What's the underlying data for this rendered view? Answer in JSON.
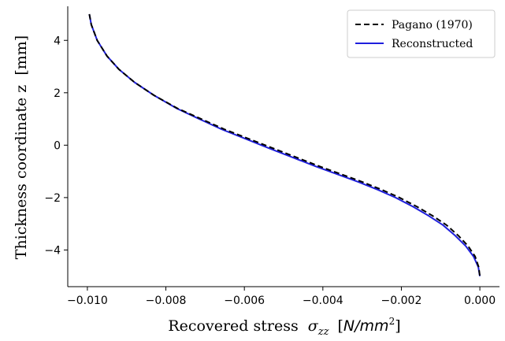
{
  "chart_data": {
    "type": "line",
    "title": "",
    "xlabel": "Recovered stress",
    "xlabel_symbol": "σ",
    "xlabel_subscript": "zz",
    "xlabel_unit_open": "[",
    "xlabel_unit": "N/mm",
    "xlabel_unit_sup": "2",
    "xlabel_unit_close": "]",
    "ylabel": "Thickness coordinate z",
    "ylabel_unit": "[mm]",
    "xlim": [
      -0.0105,
      0.0005
    ],
    "ylim": [
      -5.4,
      5.3
    ],
    "xticks": [
      -0.01,
      -0.008,
      -0.006,
      -0.004,
      -0.002,
      0.0
    ],
    "xtick_labels": [
      "−0.010",
      "−0.008",
      "−0.006",
      "−0.004",
      "−0.002",
      "0.000"
    ],
    "yticks": [
      -4,
      -2,
      0,
      2,
      4
    ],
    "ytick_labels": [
      "−4",
      "−2",
      "0",
      "2",
      "4"
    ],
    "grid": false,
    "legend_placement": "top-right",
    "series": [
      {
        "name": "Pagano (1970)",
        "color": "#000000",
        "style": "dashed",
        "x": [
          -0.00995,
          -0.0099,
          -0.00975,
          -0.0095,
          -0.0092,
          -0.0088,
          -0.0083,
          -0.0077,
          -0.0071,
          -0.0065,
          -0.0059,
          -0.0053,
          -0.0047,
          -0.0041,
          -0.00355,
          -0.003,
          -0.0025,
          -0.00205,
          -0.0016,
          -0.0012,
          -0.00085,
          -0.00055,
          -0.0003,
          -0.00012,
          -3e-05,
          0.0
        ],
        "y": [
          5.0,
          4.6,
          4.0,
          3.4,
          2.9,
          2.4,
          1.9,
          1.4,
          1.0,
          0.6,
          0.25,
          -0.1,
          -0.45,
          -0.8,
          -1.1,
          -1.4,
          -1.7,
          -2.0,
          -2.35,
          -2.7,
          -3.05,
          -3.45,
          -3.85,
          -4.25,
          -4.65,
          -5.0
        ]
      },
      {
        "name": "Reconstructed",
        "color": "#1f1fdd",
        "style": "solid",
        "x": [
          -0.00995,
          -0.0099,
          -0.00975,
          -0.0095,
          -0.0092,
          -0.0088,
          -0.0083,
          -0.00772,
          -0.00715,
          -0.00657,
          -0.00598,
          -0.0054,
          -0.0048,
          -0.0042,
          -0.00365,
          -0.0031,
          -0.0026,
          -0.00215,
          -0.0017,
          -0.0013,
          -0.00094,
          -0.00063,
          -0.00036,
          -0.00016,
          -4e-05,
          0.0
        ],
        "y": [
          5.0,
          4.6,
          4.0,
          3.4,
          2.9,
          2.4,
          1.9,
          1.4,
          1.0,
          0.6,
          0.25,
          -0.1,
          -0.45,
          -0.8,
          -1.1,
          -1.4,
          -1.7,
          -2.0,
          -2.35,
          -2.7,
          -3.05,
          -3.45,
          -3.85,
          -4.25,
          -4.65,
          -5.0
        ]
      }
    ]
  }
}
